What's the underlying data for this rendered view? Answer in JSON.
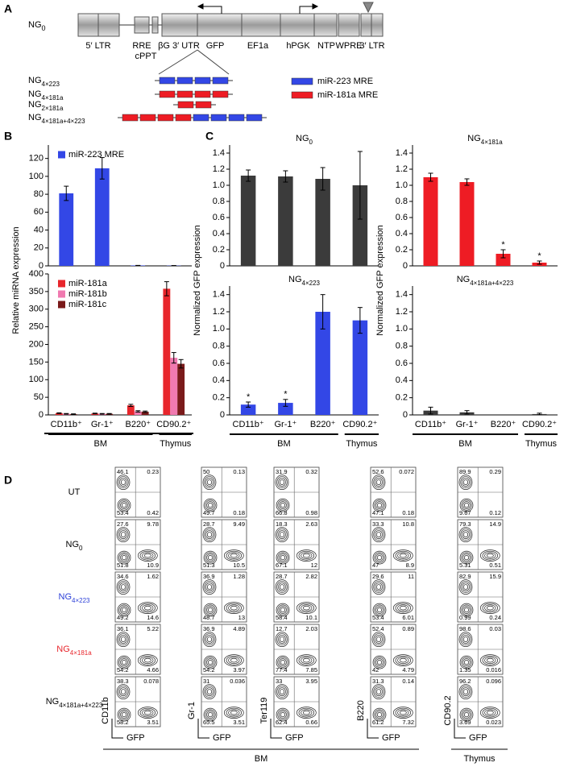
{
  "panel_labels": [
    "A",
    "B",
    "C",
    "D"
  ],
  "panel_a": {
    "construct": {
      "main": "NG",
      "sub": "0"
    },
    "elements": [
      "5′ LTR",
      "RRE",
      "cPPT",
      "βG 3′ UTR",
      "GFP",
      "EF1a",
      "hPGK",
      "NTP",
      "WPRE",
      "3′ LTR"
    ],
    "variants": [
      {
        "main": "NG",
        "sub": "4×223"
      },
      {
        "main": "NG",
        "sub": "4×181a"
      },
      {
        "main": "NG",
        "sub": "2×181a"
      },
      {
        "main": "NG",
        "sub": "4×181a+4×223"
      }
    ],
    "legend": [
      {
        "name": "miR-223 MRE",
        "color": "#3347e6"
      },
      {
        "name": "miR-181a MRE",
        "color": "#ee1c24"
      }
    ]
  },
  "chart_data": [
    {
      "type": "bar",
      "ylabel": "Relative miRNA expression",
      "legend": true,
      "ylim": [
        0,
        135
      ],
      "yticks": [
        0,
        20,
        40,
        60,
        80,
        100,
        120
      ],
      "series": [
        {
          "name": "miR-223 MRE",
          "color": "#3347e6",
          "values": [
            81,
            109,
            0.5,
            0.3
          ],
          "errors": [
            8,
            12,
            0,
            0
          ]
        }
      ]
    },
    {
      "type": "bar",
      "legend": true,
      "ylim": [
        0,
        400
      ],
      "yticks": [
        0,
        50,
        100,
        150,
        200,
        250,
        300,
        350,
        400
      ],
      "categories": [
        "CD11b⁺",
        "Gr-1⁺",
        "B220⁺",
        "CD90.2⁺"
      ],
      "groups": [
        "BM",
        "Thymus"
      ],
      "series": [
        {
          "name": "miR-181a",
          "color": "#e8262c",
          "values": [
            5,
            4,
            27,
            358
          ],
          "errors": [
            1,
            1,
            3,
            20
          ]
        },
        {
          "name": "miR-181b",
          "color": "#f07ab0",
          "values": [
            3,
            3,
            10,
            162
          ],
          "errors": [
            1,
            1,
            2,
            15
          ]
        },
        {
          "name": "miR-181c",
          "color": "#7a1a1a",
          "values": [
            2,
            3,
            9,
            145
          ],
          "errors": [
            1,
            1,
            2,
            12
          ]
        }
      ]
    },
    {
      "type": "bar",
      "title": {
        "main": "NG",
        "sub": "0"
      },
      "ylabel": "Normalized GFP expression",
      "ylim": [
        0,
        1.5
      ],
      "yticks": [
        0,
        0.2,
        0.4,
        0.6,
        0.8,
        {
          "value": 1,
          "label": "1.0"
        },
        1.2,
        1.4
      ],
      "series": [
        {
          "color": "#3b3b3b",
          "values": [
            1.12,
            1.11,
            1.08,
            1.0
          ],
          "errors": [
            0.07,
            0.07,
            0.14,
            0.42
          ]
        }
      ]
    },
    {
      "type": "bar",
      "title": {
        "main": "NG",
        "sub": "4×181a"
      },
      "ylabel": "Normalized GFP expression",
      "ylim": [
        0,
        1.5
      ],
      "yticks": [
        0,
        0.2,
        0.4,
        0.6,
        0.8,
        {
          "value": 1,
          "label": "1.0"
        },
        1.2,
        1.4
      ],
      "series": [
        {
          "color": "#ee1c24",
          "values": [
            1.1,
            1.04,
            0.15,
            0.04
          ],
          "errors": [
            0.05,
            0.04,
            0.05,
            0.02
          ],
          "significance": [
            null,
            null,
            "*",
            "*"
          ]
        }
      ]
    },
    {
      "type": "bar",
      "title": {
        "main": "NG",
        "sub": "4×223"
      },
      "ylim": [
        0,
        1.5
      ],
      "yticks": [
        0,
        0.2,
        0.4,
        0.6,
        0.8,
        {
          "value": 1,
          "label": "1.0"
        },
        1.2,
        1.4
      ],
      "categories": [
        "CD11b⁺",
        "Gr-1⁺",
        "B220⁺",
        "CD90.2⁺"
      ],
      "groups": [
        "BM",
        "Thymus"
      ],
      "series": [
        {
          "color": "#3347e6",
          "values": [
            0.12,
            0.14,
            1.2,
            1.1
          ],
          "errors": [
            0.03,
            0.04,
            0.2,
            0.15
          ],
          "significance": [
            "*",
            "*",
            null,
            null
          ]
        }
      ]
    },
    {
      "type": "bar",
      "title": {
        "main": "NG",
        "sub": "4×181a+4×223"
      },
      "ylim": [
        0,
        1.5
      ],
      "yticks": [
        0,
        0.2,
        0.4,
        0.6,
        0.8,
        {
          "value": 1,
          "label": "1.0"
        },
        1.2,
        1.4
      ],
      "categories": [
        "CD11b⁺",
        "Gr-1⁺",
        "B220⁺",
        "CD90.2⁺"
      ],
      "groups": [
        "BM",
        "Thymus"
      ],
      "series": [
        {
          "color": "#3b3b3b",
          "values": [
            0.05,
            0.03,
            0,
            0.01
          ],
          "errors": [
            0.04,
            0.02,
            0,
            0.01
          ]
        }
      ]
    }
  ],
  "panel_d": {
    "rows": [
      {
        "main": "UT",
        "color": "#000000"
      },
      {
        "main": "NG",
        "sub": "0",
        "color": "#000000"
      },
      {
        "main": "NG",
        "sub": "4×223",
        "color": "#2b3fd8"
      },
      {
        "main": "NG",
        "sub": "4×181a",
        "color": "#e8262c"
      },
      {
        "main": "NG",
        "sub": "4×181a+4×223",
        "color": "#000000"
      }
    ],
    "markers": [
      "CD11b",
      "Gr-1",
      "Ter119",
      "B220",
      "CD90.2"
    ],
    "x_label": "GFP",
    "groups": [
      "BM",
      "Thymus"
    ],
    "quadrants": [
      [
        [
          "46.1",
          "0.23",
          "53.4",
          "0.42"
        ],
        [
          "27.6",
          "9.78",
          "51.8",
          "10.9"
        ],
        [
          "34.6",
          "1.62",
          "49.2",
          "14.6"
        ],
        [
          "36.1",
          "5.22",
          "54.2",
          "4.66"
        ],
        [
          "38.3",
          "0.078",
          "58.2",
          "3.51"
        ]
      ],
      [
        [
          "50",
          "0.13",
          "49.7",
          "0.18"
        ],
        [
          "28.7",
          "9.49",
          "51.3",
          "10.5"
        ],
        [
          "36.9",
          "1.28",
          "48.7",
          "13"
        ],
        [
          "36.9",
          "4.89",
          "54.2",
          "3.97"
        ],
        [
          "31",
          "0.036",
          "65.5",
          "3.51"
        ]
      ],
      [
        [
          "31.9",
          "0.32",
          "66.8",
          "0.98"
        ],
        [
          "18.3",
          "2.63",
          "67.1",
          "12"
        ],
        [
          "28.7",
          "2.82",
          "58.4",
          "10.1"
        ],
        [
          "12.7",
          "2.03",
          "77.4",
          "7.85"
        ],
        [
          "33",
          "3.95",
          "62.4",
          "0.66"
        ]
      ],
      [
        [
          "52.6",
          "0.072",
          "47.1",
          "0.18"
        ],
        [
          "33.3",
          "10.8",
          "47",
          "8.9"
        ],
        [
          "29.6",
          "11",
          "53.4",
          "6.01"
        ],
        [
          "52.4",
          "0.89",
          "42",
          "4.79"
        ],
        [
          "31.3",
          "0.14",
          "61.2",
          "7.32"
        ]
      ],
      [
        [
          "89.9",
          "0.29",
          "9.67",
          "0.12"
        ],
        [
          "79.3",
          "14.9",
          "5.31",
          "0.51"
        ],
        [
          "82.9",
          "15.9",
          "0.99",
          "0.24"
        ],
        [
          "98.6",
          "0.03",
          "1.35",
          "0.016"
        ],
        [
          "96.2",
          "0.096",
          "3.69",
          "0.023"
        ]
      ]
    ]
  }
}
